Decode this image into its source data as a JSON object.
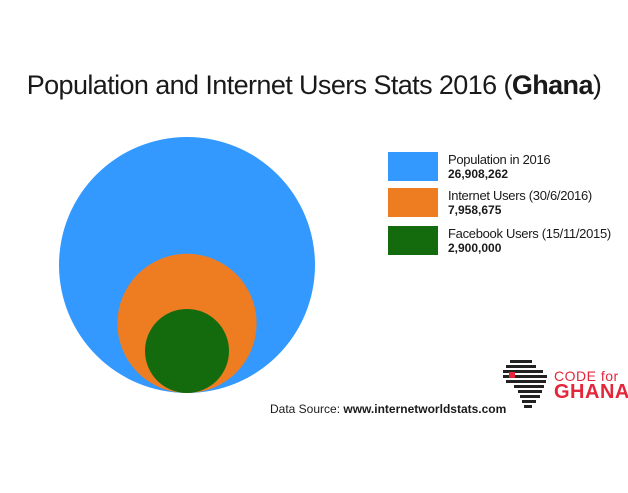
{
  "title": {
    "prefix": "Population and Internet Users Stats 2016 (",
    "country": "Ghana",
    "suffix": ")"
  },
  "chart_data": {
    "type": "nested-circles",
    "title": "Population and Internet Users Stats 2016 (Ghana)",
    "series": [
      {
        "name": "Population in 2016",
        "value": 26908262,
        "label": "26,908,262",
        "color": "#3399ff"
      },
      {
        "name": "Internet Users (30/6/2016)",
        "value": 7958675,
        "label": "7,958,675",
        "color": "#ee7d22"
      },
      {
        "name": "Facebook Users (15/11/2015)",
        "value": 2900000,
        "label": "2,900,000",
        "color": "#136b0e"
      }
    ],
    "legend_position": "right"
  },
  "source": {
    "prefix": "Data Source: ",
    "url": "www.internetworldstats.com"
  },
  "logo": {
    "top": "CODE for",
    "bottom": "GHANA"
  }
}
